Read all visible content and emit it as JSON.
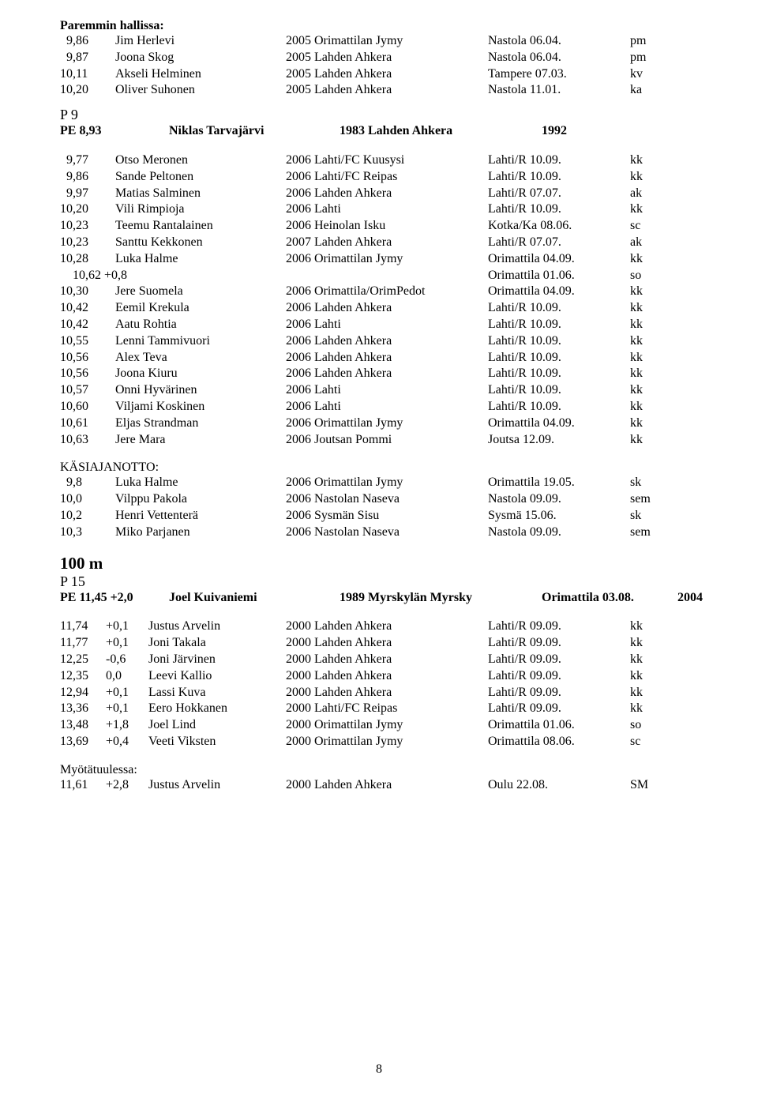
{
  "paremmin": {
    "title": "Paremmin hallissa:",
    "rows": [
      {
        "c1": "  9,86",
        "c2": "Jim Herlevi",
        "c3": "2005 Orimattilan Jymy",
        "c4": "Nastola 06.04.",
        "c5": "pm"
      },
      {
        "c1": "  9,87",
        "c2": "Joona Skog",
        "c3": "2005 Lahden Ahkera",
        "c4": "Nastola 06.04.",
        "c5": "pm"
      },
      {
        "c1": "10,11",
        "c2": "Akseli Helminen",
        "c3": "2005 Lahden Ahkera",
        "c4": "Tampere 07.03.",
        "c5": "kv"
      },
      {
        "c1": "10,20",
        "c2": "Oliver Suhonen",
        "c3": "2005 Lahden Ahkera",
        "c4": "Nastola 11.01.",
        "c5": "ka"
      }
    ]
  },
  "p9": {
    "title": "P 9",
    "pe": {
      "c1": "PE  8,93",
      "c2": "Niklas Tarvajärvi",
      "c3": "1983 Lahden Ahkera",
      "c4": "1992"
    },
    "rows": [
      {
        "c1": "  9,77",
        "c2": "Otso Meronen",
        "c3": "2006 Lahti/FC Kuusysi",
        "c4": "Lahti/R 10.09.",
        "c5": "kk"
      },
      {
        "c1": "  9,86",
        "c2": "Sande Peltonen",
        "c3": "2006 Lahti/FC Reipas",
        "c4": "Lahti/R 10.09.",
        "c5": "kk"
      },
      {
        "c1": "  9,97",
        "c2": "Matias Salminen",
        "c3": "2006 Lahden Ahkera",
        "c4": "Lahti/R 07.07.",
        "c5": "ak"
      },
      {
        "c1": "10,20",
        "c2": "Vili Rimpioja",
        "c3": "2006 Lahti",
        "c4": "Lahti/R 10.09.",
        "c5": "kk"
      },
      {
        "c1": "10,23",
        "c2": "Teemu Rantalainen",
        "c3": "2006 Heinolan Isku",
        "c4": "Kotka/Ka 08.06.",
        "c5": "sc"
      },
      {
        "c1": "10,23",
        "c2": "Santtu Kekkonen",
        "c3": "2007 Lahden Ahkera",
        "c4": "Lahti/R 07.07.",
        "c5": "ak"
      },
      {
        "c1": "10,28",
        "c2": "Luka Halme",
        "c3": "2006 Orimattilan Jymy",
        "c4": "Orimattila 04.09.",
        "c5": "kk"
      },
      {
        "c1": "    10,62 +0,8",
        "c2": "",
        "c3": "",
        "c4": "Orimattila 01.06.",
        "c5": "so"
      },
      {
        "c1": "10,30",
        "c2": "Jere Suomela",
        "c3": "2006 Orimattila/OrimPedot",
        "c4": "Orimattila 04.09.",
        "c5": "kk"
      },
      {
        "c1": "10,42",
        "c2": "Eemil Krekula",
        "c3": "2006 Lahden Ahkera",
        "c4": "Lahti/R 10.09.",
        "c5": "kk"
      },
      {
        "c1": "10,42",
        "c2": "Aatu Rohtia",
        "c3": "2006 Lahti",
        "c4": "Lahti/R 10.09.",
        "c5": "kk"
      },
      {
        "c1": "10,55",
        "c2": "Lenni Tammivuori",
        "c3": "2006 Lahden Ahkera",
        "c4": "Lahti/R 10.09.",
        "c5": "kk"
      },
      {
        "c1": "10,56",
        "c2": "Alex Teva",
        "c3": "2006 Lahden Ahkera",
        "c4": "Lahti/R 10.09.",
        "c5": "kk"
      },
      {
        "c1": "10,56",
        "c2": "Joona Kiuru",
        "c3": "2006 Lahden Ahkera",
        "c4": "Lahti/R 10.09.",
        "c5": "kk"
      },
      {
        "c1": "10,57",
        "c2": "Onni Hyvärinen",
        "c3": "2006 Lahti",
        "c4": "Lahti/R 10.09.",
        "c5": "kk"
      },
      {
        "c1": "10,60",
        "c2": "Viljami Koskinen",
        "c3": "2006 Lahti",
        "c4": "Lahti/R 10.09.",
        "c5": "kk"
      },
      {
        "c1": "10,61",
        "c2": "Eljas Strandman",
        "c3": "2006 Orimattilan Jymy",
        "c4": "Orimattila 04.09.",
        "c5": "kk"
      },
      {
        "c1": "10,63",
        "c2": "Jere Mara",
        "c3": "2006 Joutsan Pommi",
        "c4": "Joutsa 12.09.",
        "c5": "kk"
      }
    ]
  },
  "kasi": {
    "title": "KÄSIAJANOTTO:",
    "rows": [
      {
        "c1": "  9,8",
        "c2": "Luka Halme",
        "c3": "2006 Orimattilan Jymy",
        "c4": "Orimattila 19.05.",
        "c5": "sk"
      },
      {
        "c1": "10,0",
        "c2": "Vilppu Pakola",
        "c3": "2006 Nastolan Naseva",
        "c4": "Nastola 09.09.",
        "c5": "sem"
      },
      {
        "c1": "10,2",
        "c2": "Henri Vettenterä",
        "c3": "2006 Sysmän Sisu",
        "c4": "Sysmä 15.06.",
        "c5": "sk"
      },
      {
        "c1": "10,3",
        "c2": "Miko Parjanen",
        "c3": "2006 Nastolan Naseva",
        "c4": "Nastola 09.09.",
        "c5": "sem"
      }
    ]
  },
  "m100": {
    "title": "100 m",
    "sub": "P 15",
    "pe": {
      "c1": "PE 11,45 +2,0",
      "c2": "Joel Kuivaniemi",
      "c3": "1989 Myrskylän Myrsky",
      "c4": "Orimattila 03.08.",
      "c5": "2004"
    },
    "rows": [
      {
        "a": "11,74",
        "b": "+0,1",
        "c2": "Justus Arvelin",
        "c3": "2000 Lahden Ahkera",
        "c4": "Lahti/R 09.09.",
        "c5": "kk"
      },
      {
        "a": "11,77",
        "b": "+0,1",
        "c2": "Joni Takala",
        "c3": "2000 Lahden Ahkera",
        "c4": "Lahti/R 09.09.",
        "c5": "kk"
      },
      {
        "a": "12,25",
        "b": "-0,6",
        "c2": "Joni Järvinen",
        "c3": "2000 Lahden Ahkera",
        "c4": "Lahti/R 09.09.",
        "c5": "kk"
      },
      {
        "a": "12,35",
        "b": "0,0",
        "c2": "Leevi Kallio",
        "c3": "2000 Lahden Ahkera",
        "c4": "Lahti/R 09.09.",
        "c5": "kk"
      },
      {
        "a": "12,94",
        "b": "+0,1",
        "c2": "Lassi Kuva",
        "c3": "2000 Lahden Ahkera",
        "c4": "Lahti/R 09.09.",
        "c5": "kk"
      },
      {
        "a": "13,36",
        "b": "+0,1",
        "c2": "Eero Hokkanen",
        "c3": "2000 Lahti/FC Reipas",
        "c4": "Lahti/R 09.09.",
        "c5": "kk"
      },
      {
        "a": "13,48",
        "b": "+1,8",
        "c2": "Joel Lind",
        "c3": "2000 Orimattilan Jymy",
        "c4": "Orimattila 01.06.",
        "c5": "so"
      },
      {
        "a": "13,69",
        "b": "+0,4",
        "c2": "Veeti Viksten",
        "c3": "2000 Orimattilan Jymy",
        "c4": "Orimattila 08.06.",
        "c5": "sc"
      }
    ]
  },
  "myota": {
    "title": "Myötätuulessa:",
    "rows": [
      {
        "a": "11,61",
        "b": "+2,8",
        "c2": "Justus Arvelin",
        "c3": "2000 Lahden Ahkera",
        "c4": "Oulu 22.08.",
        "c5": "SM"
      }
    ]
  },
  "page_number": "8"
}
